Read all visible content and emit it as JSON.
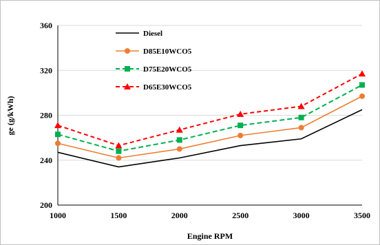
{
  "chart_data": {
    "type": "line",
    "x": [
      1000,
      1500,
      2000,
      2500,
      3000,
      3500
    ],
    "x_tick_labels": [
      "1000",
      "1500",
      "2000",
      "2500",
      "3000",
      "3500"
    ],
    "xlabel": "Engine RPM",
    "ylabel": "ge (g/kWh)",
    "ylim": [
      200,
      360
    ],
    "y_ticks": [
      200,
      240,
      280,
      320,
      360
    ],
    "y_tick_labels": [
      "200",
      "240",
      "280",
      "320",
      "360"
    ],
    "grid": "horizontal",
    "legend_position": "top-left",
    "series": [
      {
        "name": "Diesel",
        "values": [
          247,
          234,
          242,
          253,
          259,
          285
        ],
        "color": "#000000",
        "dash": "solid",
        "marker": "none"
      },
      {
        "name": "D85E10WCO5",
        "values": [
          255,
          242,
          250,
          262,
          269,
          297
        ],
        "color": "#ED7D31",
        "dash": "solid",
        "marker": "circle"
      },
      {
        "name": "D75E20WCO5",
        "values": [
          263,
          248,
          258,
          271,
          278,
          307
        ],
        "color": "#00B050",
        "dash": "dash",
        "marker": "square"
      },
      {
        "name": "D65E30WCO5",
        "values": [
          271,
          253,
          267,
          281,
          288,
          317
        ],
        "color": "#FF0000",
        "dash": "dash",
        "marker": "triangle"
      }
    ]
  }
}
